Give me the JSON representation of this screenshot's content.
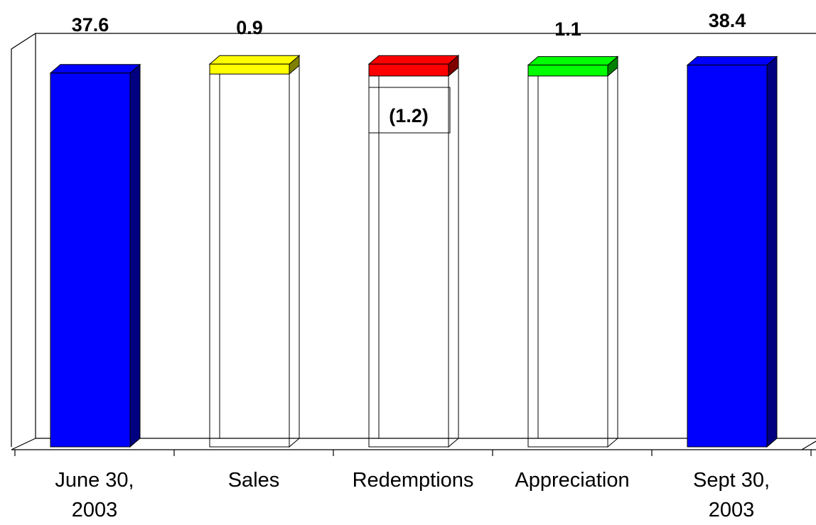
{
  "chart_data": {
    "type": "bar",
    "subtype": "waterfall",
    "categories": [
      "June 30,\n2003",
      "Sales",
      "Redemptions",
      "Appreciation",
      "Sept 30,\n2003"
    ],
    "values": [
      37.6,
      0.9,
      -1.2,
      1.1,
      38.4
    ],
    "value_labels": [
      "37.6",
      "0.9",
      "(1.2)",
      "1.1",
      "38.4"
    ],
    "bar_kinds": [
      "total",
      "delta",
      "delta",
      "delta",
      "total"
    ],
    "colors": [
      "#0000ff",
      "#ffff00",
      "#ff0000",
      "#00ff00",
      "#0000ff"
    ],
    "side_colors": [
      "#000080",
      "#808000",
      "#800000",
      "#008000",
      "#000080"
    ],
    "ylim": [
      0,
      39.3
    ],
    "grid": false,
    "legend": "none",
    "title": "",
    "xlabel": "",
    "ylabel": ""
  }
}
